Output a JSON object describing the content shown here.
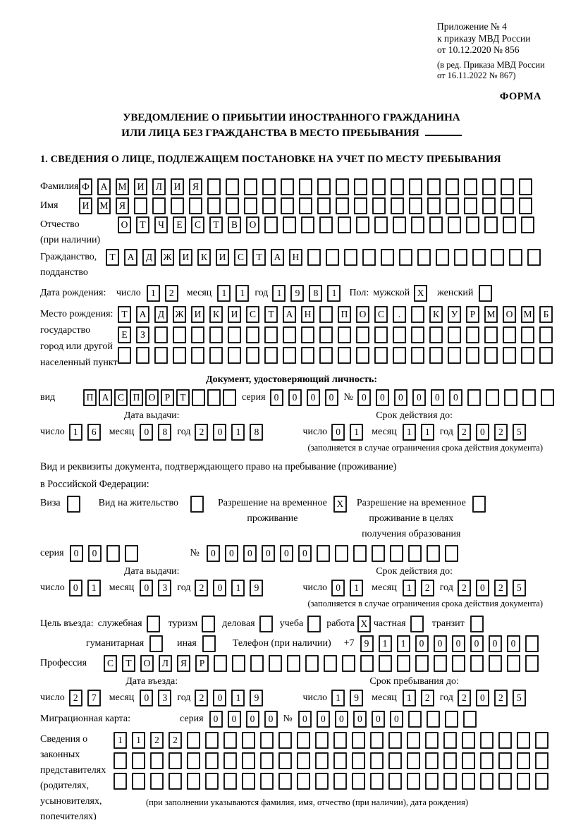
{
  "annex": {
    "lines": [
      "Приложение № 4",
      "к приказу МВД России",
      "от 10.12.2020 № 856"
    ],
    "note_lines": [
      "(в ред. Приказа МВД России",
      "от 16.11.2022 № 867)"
    ],
    "form_label": "ФОРМА"
  },
  "title": {
    "line1": "УВЕДОМЛЕНИЕ О ПРИБЫТИИ ИНОСТРАННОГО ГРАЖДАНИНА",
    "line2": "ИЛИ ЛИЦА БЕЗ ГРАЖДАНСТВА В МЕСТО ПРЕБЫВАНИЯ"
  },
  "section1": {
    "heading": "1. СВЕДЕНИЯ О ЛИЦЕ, ПОДЛЕЖАЩЕМ ПОСТАНОВКЕ НА УЧЕТ ПО МЕСТУ ПРЕБЫВАНИЯ"
  },
  "labels": {
    "surname": "Фамилия",
    "name": "Имя",
    "patronymic": "Отчество",
    "patronymic_note": "(при наличии)",
    "citizenship": "Гражданство,",
    "citizenship2": "подданство",
    "birth_date": "Дата рождения:",
    "day": "число",
    "month": "месяц",
    "year": "год",
    "sex": "Пол:",
    "male": "мужской",
    "female": "женский",
    "birth_place": "Место рождения:",
    "birth_place2": "государство",
    "birth_place3": "город или другой",
    "birth_place4": "населенный пункт",
    "id_doc_heading": "Документ, удостоверяющий личность:",
    "kind": "вид",
    "series": "серия",
    "number": "№",
    "issue_date": "Дата выдачи:",
    "valid_until": "Срок действия до:",
    "valid_note": "(заполняется в случае ограничения срока действия документа)",
    "permit_line1": "Вид и реквизиты документа, подтверждающего право на пребывание (проживание)",
    "permit_line2": "в Российской Федерации:",
    "visa": "Виза",
    "residence": "Вид на жительство",
    "temp1": "Разрешение на временное",
    "temp2": "проживание",
    "edu1": "Разрешение на временное",
    "edu2": "проживание в целях",
    "edu3": "получения образования",
    "purpose": "Цель въезда:",
    "p_official": "служебная",
    "p_tourism": "туризм",
    "p_business": "деловая",
    "p_study": "учеба",
    "p_work": "работа",
    "p_private": "частная",
    "p_transit": "транзит",
    "p_humanitarian": "гуманитарная",
    "p_other": "иная",
    "phone": "Телефон (при наличии)",
    "phone_prefix": "+7",
    "profession": "Профессия",
    "entry_date": "Дата въезда:",
    "stay_until": "Срок пребывания до:",
    "migration_card": "Миграционная карта:",
    "rep_lines": [
      "Сведения о",
      "законных",
      "представителях",
      "(родителях,",
      "усыновителях,",
      "попечителях)"
    ],
    "rep_note": "(при заполнении указываются фамилия, имя, отчество (при наличии), дата рождения)"
  },
  "cells": {
    "surname": {
      "chars": "ФАМИЛИЯ",
      "len": 25
    },
    "name": {
      "chars": "ИМЯ",
      "len": 25
    },
    "patronymic": {
      "chars": "ОТЧЕСТВО",
      "len": 23
    },
    "citizenship": {
      "chars": "ТАДЖИКИСТАН",
      "len": 24
    },
    "birth_day": {
      "chars": "12",
      "len": 2
    },
    "birth_month": {
      "chars": "11",
      "len": 2
    },
    "birth_year": {
      "chars": "1981",
      "len": 4
    },
    "sex_male": {
      "chars": "X",
      "len": 1
    },
    "sex_female": {
      "chars": "",
      "len": 1
    },
    "birthplace1": {
      "chars": "ТАДЖИКИСТАН ПОС. КУРМОМБ",
      "len": 24
    },
    "birthplace2": {
      "chars": "ЕЗ",
      "len": 24
    },
    "birthplace3": {
      "chars": "",
      "len": 24
    },
    "doc_kind": {
      "chars": "ПАСПОРТ",
      "len": 10
    },
    "doc_series": {
      "chars": "0000",
      "len": 4
    },
    "doc_number": {
      "chars": "000000",
      "len": 11
    },
    "doc_issue_day": {
      "chars": "16",
      "len": 2
    },
    "doc_issue_month": {
      "chars": "08",
      "len": 2
    },
    "doc_issue_year": {
      "chars": "2018",
      "len": 4
    },
    "doc_valid_day": {
      "chars": "01",
      "len": 2
    },
    "doc_valid_month": {
      "chars": "11",
      "len": 2
    },
    "doc_valid_year": {
      "chars": "2025",
      "len": 4
    },
    "visa_box": {
      "chars": "",
      "len": 1
    },
    "residence_box": {
      "chars": "",
      "len": 1
    },
    "temp_box": {
      "chars": "X",
      "len": 1
    },
    "edu_box": {
      "chars": "",
      "len": 1
    },
    "permit_series": {
      "chars": "00",
      "len": 4
    },
    "permit_number": {
      "chars": "000000",
      "len": 14
    },
    "permit_issue_day": {
      "chars": "01",
      "len": 2
    },
    "permit_issue_month": {
      "chars": "03",
      "len": 2
    },
    "permit_issue_year": {
      "chars": "2019",
      "len": 4
    },
    "permit_valid_day": {
      "chars": "01",
      "len": 2
    },
    "permit_valid_month": {
      "chars": "12",
      "len": 2
    },
    "permit_valid_year": {
      "chars": "2025",
      "len": 4
    },
    "box_official": {
      "chars": "",
      "len": 1
    },
    "box_tourism": {
      "chars": "",
      "len": 1
    },
    "box_business": {
      "chars": "",
      "len": 1
    },
    "box_study": {
      "chars": "",
      "len": 1
    },
    "box_work": {
      "chars": "X",
      "len": 1
    },
    "box_private": {
      "chars": "",
      "len": 1
    },
    "box_transit": {
      "chars": "",
      "len": 1
    },
    "box_humanitarian": {
      "chars": "",
      "len": 1
    },
    "box_other": {
      "chars": "",
      "len": 1
    },
    "phone": {
      "chars": "911000000",
      "len": 10
    },
    "profession": {
      "chars": "СТОЛЯР",
      "len": 24
    },
    "entry_day": {
      "chars": "27",
      "len": 2
    },
    "entry_month": {
      "chars": "03",
      "len": 2
    },
    "entry_year": {
      "chars": "2019",
      "len": 4
    },
    "stay_day": {
      "chars": "19",
      "len": 2
    },
    "stay_month": {
      "chars": "12",
      "len": 2
    },
    "stay_year": {
      "chars": "2025",
      "len": 4
    },
    "mig_series": {
      "chars": "0000",
      "len": 4
    },
    "mig_number": {
      "chars": "000000",
      "len": 10
    },
    "rep1": {
      "chars": "1122",
      "len": 24
    },
    "rep2": {
      "chars": "",
      "len": 24
    },
    "rep3": {
      "chars": "",
      "len": 24
    }
  }
}
